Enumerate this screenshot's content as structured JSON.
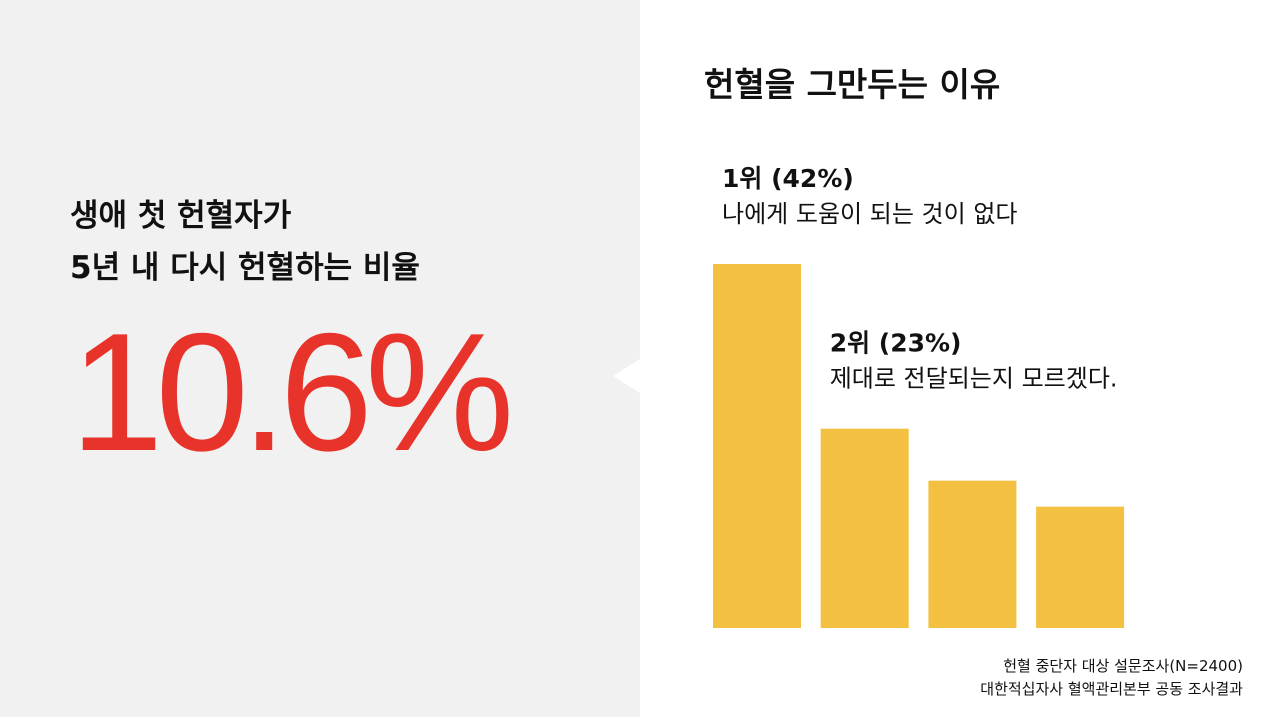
{
  "panel": {
    "lines": [
      "생애 첫 헌혈자가",
      "5년 내 다시 헌혈하는 비율"
    ],
    "rate": "10.6%"
  },
  "chart_data": {
    "type": "bar",
    "title": "헌혈을 그만두는 이유",
    "categories": [
      "나에게 도움이 되는 것이 없다",
      "제대로 전달되는지 모르겠다.",
      null,
      null
    ],
    "values": [
      42,
      23,
      17,
      14
    ],
    "value_labels": [
      "1위 (42%)",
      "2위 (23%)",
      null,
      null
    ],
    "color": "#f4c042",
    "ylim": [
      0,
      42
    ]
  },
  "notes": [
    "헌혈 중단자 대상 설문조사(N=2400)",
    "대한적십자사 혈액관리본부 공동 조사결과"
  ]
}
